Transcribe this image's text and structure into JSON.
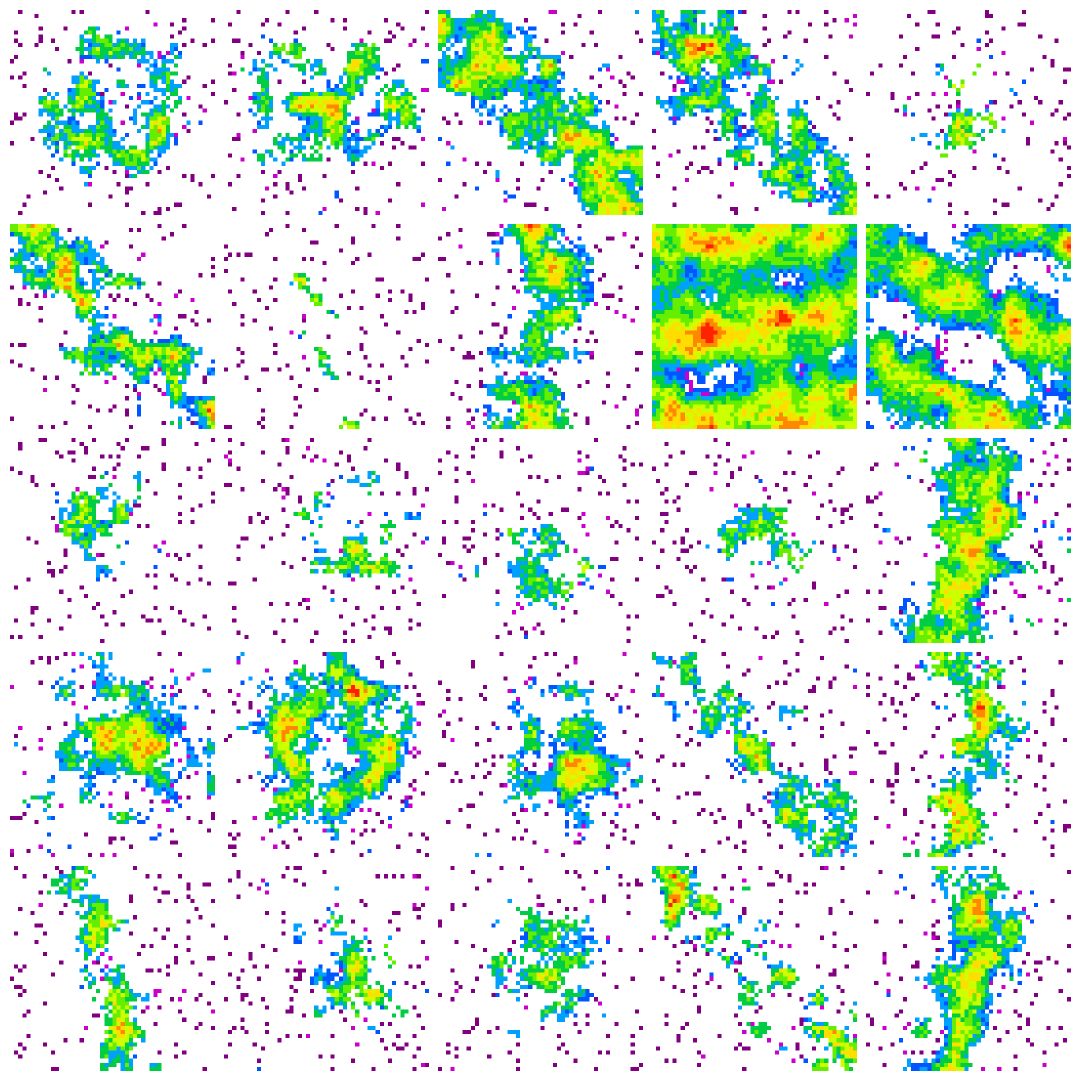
{
  "colors": {
    "background": "#ffffff",
    "palette": [
      "#800080",
      "#cc00cc",
      "#0055ff",
      "#00a0ff",
      "#00cc44",
      "#66ee00",
      "#ccff00",
      "#ffdd00",
      "#ff8800",
      "#ff2200"
    ]
  },
  "grid": {
    "rows": 5,
    "cols": 5
  },
  "tiles": [
    {
      "pattern": "blob-ring",
      "density": 0.45,
      "hot": 0.35
    },
    {
      "pattern": "blob-wide",
      "density": 0.55,
      "hot": 0.45
    },
    {
      "pattern": "diagonal",
      "density": 0.6,
      "hot": 0.4
    },
    {
      "pattern": "diagonal",
      "density": 0.55,
      "hot": 0.35
    },
    {
      "pattern": "blob",
      "density": 0.4,
      "hot": 0.55
    },
    {
      "pattern": "diagonal",
      "density": 0.5,
      "hot": 0.4
    },
    {
      "pattern": "streak",
      "density": 0.3,
      "hot": 0.3
    },
    {
      "pattern": "vertical",
      "density": 0.55,
      "hot": 0.35
    },
    {
      "pattern": "bands",
      "density": 0.95,
      "hot": 0.45
    },
    {
      "pattern": "bands-diag",
      "density": 0.75,
      "hot": 0.4
    },
    {
      "pattern": "scatter",
      "density": 0.45,
      "hot": 0.4
    },
    {
      "pattern": "blob-right",
      "density": 0.45,
      "hot": 0.4
    },
    {
      "pattern": "blob-bottom",
      "density": 0.45,
      "hot": 0.45
    },
    {
      "pattern": "blob",
      "density": 0.4,
      "hot": 0.4
    },
    {
      "pattern": "vertical",
      "density": 0.65,
      "hot": 0.5
    },
    {
      "pattern": "blob-wide",
      "density": 0.6,
      "hot": 0.45
    },
    {
      "pattern": "blob-ring",
      "density": 0.55,
      "hot": 0.4
    },
    {
      "pattern": "blob-right",
      "density": 0.6,
      "hot": 0.35
    },
    {
      "pattern": "diagonal",
      "density": 0.45,
      "hot": 0.3
    },
    {
      "pattern": "vertical",
      "density": 0.45,
      "hot": 0.45
    },
    {
      "pattern": "streak",
      "density": 0.45,
      "hot": 0.45
    },
    {
      "pattern": "blob-right",
      "density": 0.5,
      "hot": 0.5
    },
    {
      "pattern": "blob",
      "density": 0.5,
      "hot": 0.4
    },
    {
      "pattern": "diagonal",
      "density": 0.4,
      "hot": 0.4
    },
    {
      "pattern": "vertical",
      "density": 0.55,
      "hot": 0.45
    }
  ]
}
